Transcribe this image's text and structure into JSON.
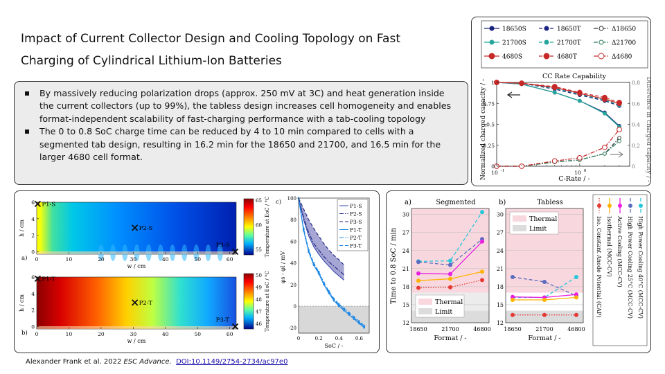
{
  "title": {
    "line1": "Impact of Current Collector Design and Cooling Topology on Fast",
    "line2": "Charging of Cylindrical Lithium-Ion Batteries"
  },
  "bullets": [
    "By massively reducing polarization drops (approx. 250 mV at 3C) and heat generation inside the current collectors (up to 99%), the tabless design increases cell homogeneity and enables format-independent  scalability of fast-charging performance with  a tab-cooling topology",
    "The 0 to 0.8 SoC charge time can be reduced by 4 to 10 min compared to cells with a segmented tab design, resulting in 16.2 min for the 18650 and 21700, and 16.5 min for the larger 4680 cell format."
  ],
  "citation": {
    "authors": "Alexander Frank et al. 2022 ",
    "journal": "ESC Advance.",
    "doi": "DOI:10.1149/2754-2734/ac97e0"
  },
  "cc_chart": {
    "title": "CC Rate Capability",
    "xlabel": "C-Rate / -",
    "ylabel_left": "Normalized charged capacity / -",
    "ylabel_right": "Difference in charged capacity / -",
    "legend": [
      "18650S",
      "18650T",
      "Δ18650",
      "21700S",
      "21700T",
      "Δ21700",
      "4680S",
      "4680T",
      "Δ4680"
    ],
    "x_ticks": [
      "10",
      "10"
    ],
    "x_tick_exps": [
      "-1",
      "0"
    ],
    "yl_ticks": [
      "0",
      "0.25",
      "0.5",
      "0.75",
      "1"
    ],
    "yr_ticks": [
      "0",
      "0.2",
      "0.4",
      "0.6",
      "0.8"
    ]
  },
  "sim": {
    "label_a": "a)",
    "label_b": "b)",
    "label_c": "c)",
    "hlabel": "h / cm",
    "wlabel": "w / cm",
    "h_ticks": [
      "0",
      "2",
      "4",
      "6"
    ],
    "w_ticks": [
      "0",
      "10",
      "20",
      "30",
      "40",
      "50",
      "60"
    ],
    "points_a": [
      "P1-S",
      "P2-S",
      "P3-S"
    ],
    "points_b": [
      "P1-T",
      "P2-T",
      "P3-T"
    ],
    "cbar_a_label": "Temperature at EoC / °C",
    "cbar_a_ticks": [
      "65",
      "60",
      "55"
    ],
    "cbar_b_label": "Temperature at EoC / °C",
    "cbar_b_ticks": [
      "50",
      "49",
      "48",
      "47",
      "46"
    ],
    "c_xlabel": "SoC / -",
    "c_ylabel": "φs - φl / mV",
    "c_x_ticks": [
      "0",
      "0.2",
      "0.4",
      "0.6"
    ],
    "c_y_ticks": [
      "100",
      "80",
      "60",
      "40",
      "20",
      "0",
      "-20"
    ],
    "c_legend": [
      "P1-S",
      "P2-S",
      "P3-S",
      "P1-T",
      "P2-T",
      "P3-T"
    ]
  },
  "chart_data": [
    {
      "type": "line",
      "title": "CC Rate Capability",
      "xlabel": "C-Rate / -",
      "ylabel": "Normalized charged capacity / -",
      "xscale": "log",
      "x": [
        0.1,
        0.2,
        0.5,
        1,
        2,
        3
      ],
      "ylim": [
        0,
        1
      ],
      "y2lim": [
        0,
        0.8
      ],
      "series": [
        {
          "name": "18650S",
          "axis": "left",
          "color": "#1a237e",
          "style": "solid",
          "marker": "circle",
          "values": [
            1.0,
            0.98,
            0.88,
            0.78,
            0.64,
            0.48
          ]
        },
        {
          "name": "18650T",
          "axis": "left",
          "color": "#1a237e",
          "style": "dashed",
          "marker": "circle",
          "values": [
            1.0,
            0.99,
            0.92,
            0.85,
            0.78,
            0.72
          ]
        },
        {
          "name": "21700S",
          "axis": "left",
          "color": "#26a69a",
          "style": "solid",
          "marker": "circle",
          "values": [
            1.0,
            0.98,
            0.88,
            0.78,
            0.63,
            0.47
          ]
        },
        {
          "name": "21700T",
          "axis": "left",
          "color": "#26a69a",
          "style": "dashed",
          "marker": "circle",
          "values": [
            1.0,
            0.99,
            0.93,
            0.86,
            0.79,
            0.73
          ]
        },
        {
          "name": "4680S",
          "axis": "left",
          "color": "#c62828",
          "style": "solid",
          "marker": "circle",
          "values": [
            1.0,
            0.99,
            0.94,
            0.87,
            0.8,
            0.75
          ]
        },
        {
          "name": "4680T",
          "axis": "left",
          "color": "#c62828",
          "style": "dashed",
          "marker": "circle",
          "values": [
            1.0,
            0.99,
            0.95,
            0.88,
            0.82,
            0.76
          ]
        },
        {
          "name": "Δ18650",
          "axis": "right",
          "color": "#333333",
          "style": "dashdot",
          "marker": "circle",
          "values": [
            0.0,
            0.0,
            0.04,
            0.06,
            0.12,
            0.27
          ]
        },
        {
          "name": "Δ21700",
          "axis": "right",
          "color": "#2e7d5b",
          "style": "dashdot",
          "marker": "circle",
          "values": [
            0.0,
            0.0,
            0.04,
            0.06,
            0.12,
            0.24
          ]
        },
        {
          "name": "Δ4680",
          "axis": "right",
          "color": "#c62828",
          "style": "dashdot",
          "marker": "circle",
          "values": [
            0.0,
            0.0,
            0.05,
            0.08,
            0.18,
            0.35
          ]
        }
      ]
    },
    {
      "type": "line",
      "xlabel": "SoC / -",
      "ylabel": "φs - φl / mV",
      "xlim": [
        0,
        0.7
      ],
      "ylim": [
        -25,
        100
      ],
      "x": [
        0.0,
        0.05,
        0.1,
        0.15,
        0.2,
        0.25,
        0.3,
        0.35,
        0.4,
        0.45,
        0.5,
        0.55,
        0.6,
        0.65
      ],
      "series": [
        {
          "name": "P1-S",
          "color": "#3949ab",
          "style": "solid",
          "values": [
            100,
            80,
            65,
            55,
            48,
            42,
            37,
            32,
            28,
            24,
            null,
            null,
            null,
            null
          ]
        },
        {
          "name": "P2-S",
          "color": "#1a237e",
          "style": "dashdot",
          "values": [
            100,
            82,
            68,
            58,
            52,
            46,
            41,
            37,
            33,
            29,
            null,
            null,
            null,
            null
          ]
        },
        {
          "name": "P3-S",
          "color": "#1a237e",
          "style": "dashed",
          "values": [
            100,
            90,
            80,
            72,
            65,
            58,
            52,
            47,
            43,
            38,
            null,
            null,
            null,
            null
          ]
        },
        {
          "name": "P1-T",
          "color": "#1e88e5",
          "style": "solid",
          "values": [
            100,
            70,
            50,
            38,
            30,
            20,
            12,
            5,
            0,
            -4,
            -8,
            -12,
            -16,
            -20
          ]
        },
        {
          "name": "P2-T",
          "color": "#1e88e5",
          "style": "dashdot",
          "values": [
            100,
            71,
            51,
            39,
            31,
            21,
            13,
            6,
            1,
            -3,
            -7,
            -11,
            -15,
            -19
          ]
        },
        {
          "name": "P3-T",
          "color": "#1e88e5",
          "style": "dashed",
          "values": [
            100,
            72,
            52,
            40,
            32,
            22,
            14,
            7,
            2,
            -2,
            -6,
            -10,
            -14,
            -18
          ]
        }
      ]
    },
    {
      "type": "line",
      "title": "Segmented",
      "label": "a)",
      "xlabel": "Format / -",
      "ylabel": "Time to 0.8 SoC / min",
      "categories": [
        "18650",
        "21700",
        "46800"
      ],
      "ylim": [
        12,
        31
      ],
      "y_ticks": [
        "12",
        "15",
        "18",
        "21",
        "24",
        "27",
        "30"
      ],
      "legend": [
        "Thermal",
        "Limit"
      ],
      "series": [
        {
          "name": "High Power Cooling 40°C (MCC-CV)",
          "color": "#26c6da",
          "values": [
            22.2,
            22.3,
            30.4
          ]
        },
        {
          "name": "High Power Cooling 25°C (MCC-CV)",
          "color": "#5c6bc0",
          "values": [
            22.1,
            21.6,
            25.9
          ]
        },
        {
          "name": "Active Cooling (MCC-CV)",
          "color": "#e91ee0",
          "values": [
            20.2,
            20.1,
            25.5
          ]
        },
        {
          "name": "Isothermal (MCC-CV)",
          "color": "#ffb300",
          "values": [
            19.0,
            19.3,
            20.5
          ]
        },
        {
          "name": "Iso. Constant Anode Potential (CAP)",
          "color": "#e53935",
          "values": [
            17.8,
            17.9,
            19.1
          ]
        }
      ]
    },
    {
      "type": "line",
      "title": "Tabless",
      "label": "b)",
      "xlabel": "Format / -",
      "categories": [
        "18650",
        "21700",
        "46800"
      ],
      "ylim": [
        12,
        31
      ],
      "y_ticks": [
        "12",
        "15",
        "18",
        "21",
        "24",
        "27",
        "30"
      ],
      "legend": [
        "Thermal",
        "Limit"
      ],
      "series": [
        {
          "name": "High Power Cooling 40°C (MCC-CV)",
          "color": "#26c6da",
          "values": [
            16.2,
            16.2,
            19.6
          ]
        },
        {
          "name": "High Power Cooling 25°C (MCC-CV)",
          "color": "#5c6bc0",
          "values": [
            19.6,
            18.8,
            16.5
          ]
        },
        {
          "name": "Active Cooling (MCC-CV)",
          "color": "#e91ee0",
          "values": [
            16.3,
            16.2,
            16.7
          ]
        },
        {
          "name": "Isothermal (MCC-CV)",
          "color": "#ffb300",
          "values": [
            15.8,
            15.8,
            16.2
          ]
        },
        {
          "name": "Iso. Constant Anode Potential (CAP)",
          "color": "#e53935",
          "values": [
            13.3,
            13.3,
            13.3
          ]
        }
      ]
    }
  ]
}
